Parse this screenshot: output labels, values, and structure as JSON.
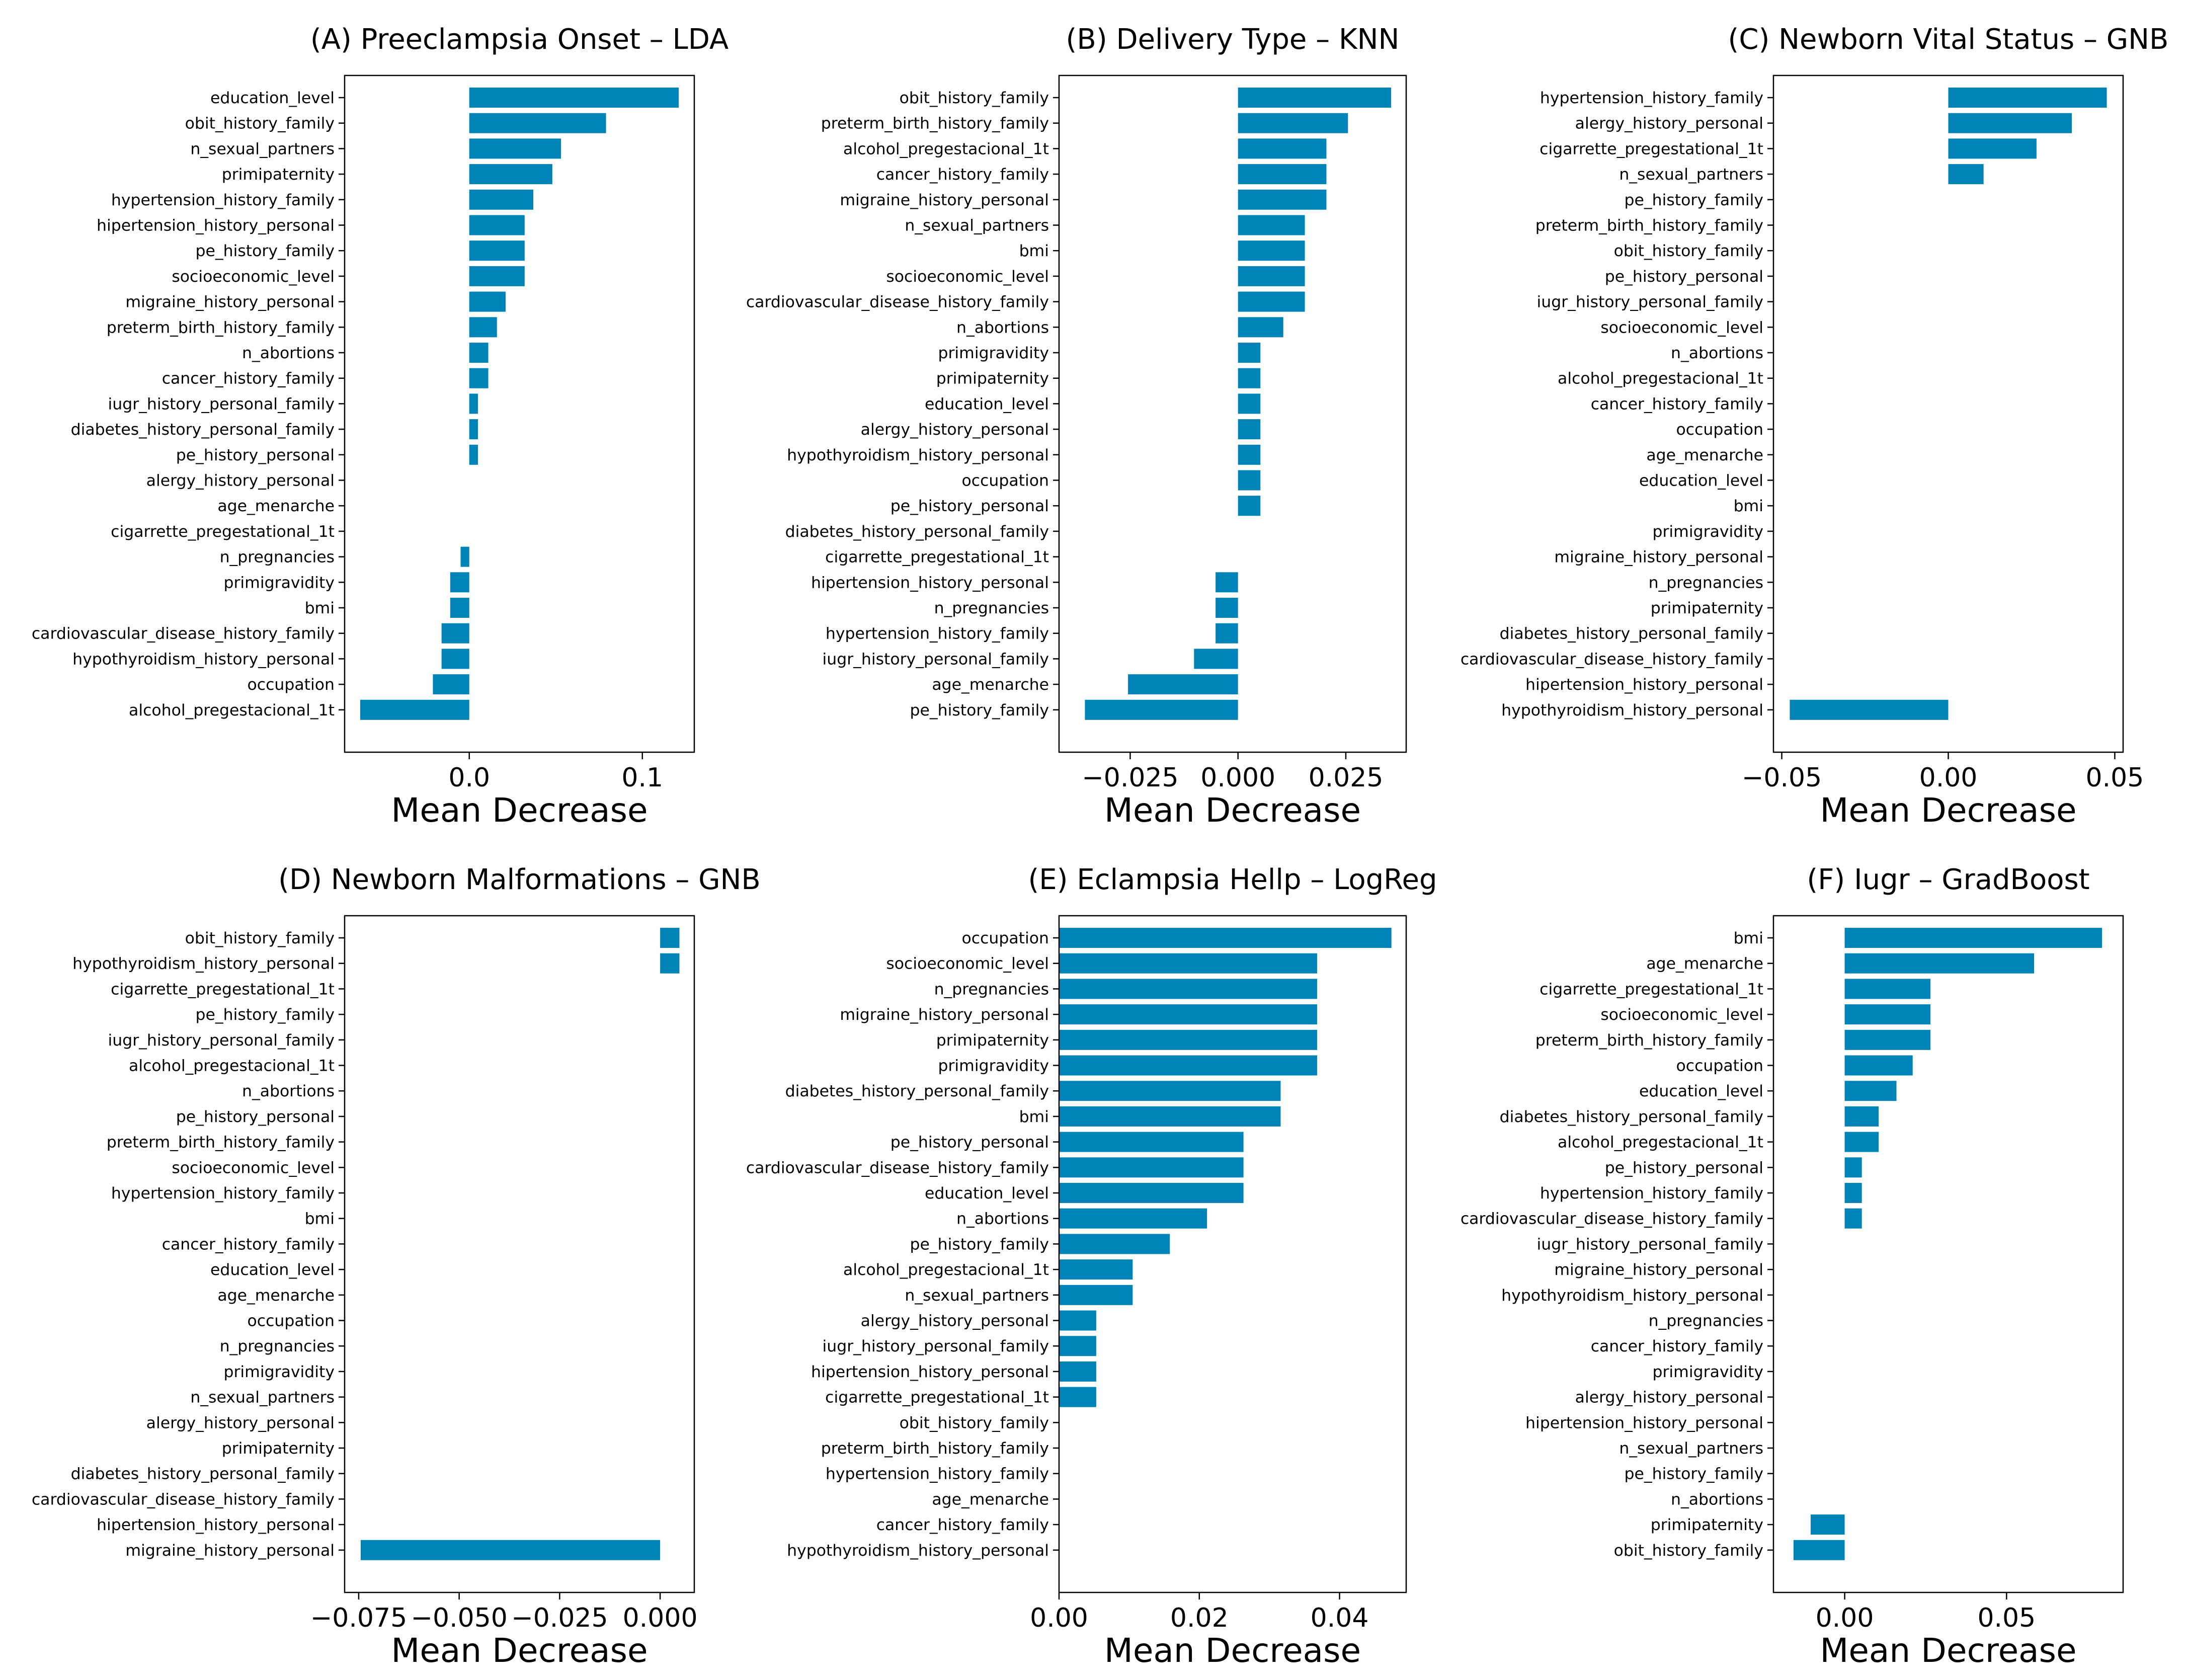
{
  "bar_color": "#0084b8",
  "chart_data": [
    {
      "type": "bar",
      "orientation": "horizontal",
      "title": "(A) Preeclampsia Onset – LDA",
      "xlabel": "Mean Decrease",
      "xlim": [
        -0.072,
        0.13
      ],
      "xticks": [
        0.0,
        0.1
      ],
      "xtick_labels": [
        "0.0",
        "0.1"
      ],
      "categories": [
        "education_level",
        "obit_history_family",
        "n_sexual_partners",
        "primipaternity",
        "hypertension_history_family",
        "hipertension_history_personal",
        "pe_history_family",
        "socioeconomic_level",
        "migraine_history_personal",
        "preterm_birth_history_family",
        "n_abortions",
        "cancer_history_family",
        "iugr_history_personal_family",
        "diabetes_history_personal_family",
        "pe_history_personal",
        "alergy_history_personal",
        "age_menarche",
        "cigarrette_pregestational_1t",
        "n_pregnancies",
        "primigravidity",
        "bmi",
        "cardiovascular_disease_history_family",
        "hypothyroidism_history_personal",
        "occupation",
        "alcohol_pregestacional_1t"
      ],
      "values": [
        0.121,
        0.079,
        0.053,
        0.048,
        0.037,
        0.032,
        0.032,
        0.032,
        0.021,
        0.016,
        0.011,
        0.011,
        0.005,
        0.005,
        0.005,
        0.0,
        0.0,
        0.0,
        -0.005,
        -0.011,
        -0.011,
        -0.016,
        -0.016,
        -0.021,
        -0.063
      ]
    },
    {
      "type": "bar",
      "orientation": "horizontal",
      "title": "(B) Delivery Type – KNN",
      "xlabel": "Mean Decrease",
      "xlim": [
        -0.0415,
        0.039
      ],
      "xticks": [
        -0.025,
        0.0,
        0.025
      ],
      "xtick_labels": [
        "−0.025",
        "0.000",
        "0.025"
      ],
      "categories": [
        "obit_history_family",
        "preterm_birth_history_family",
        "alcohol_pregestacional_1t",
        "cancer_history_family",
        "migraine_history_personal",
        "n_sexual_partners",
        "bmi",
        "socioeconomic_level",
        "cardiovascular_disease_history_family",
        "n_abortions",
        "primigravidity",
        "primipaternity",
        "education_level",
        "alergy_history_personal",
        "hypothyroidism_history_personal",
        "occupation",
        "pe_history_personal",
        "diabetes_history_personal_family",
        "cigarrette_pregestational_1t",
        "hipertension_history_personal",
        "n_pregnancies",
        "hypertension_history_family",
        "iugr_history_personal_family",
        "age_menarche",
        "pe_history_family"
      ],
      "values": [
        0.0355,
        0.0255,
        0.0205,
        0.0205,
        0.0205,
        0.0155,
        0.0155,
        0.0155,
        0.0155,
        0.0105,
        0.0052,
        0.0052,
        0.0052,
        0.0052,
        0.0052,
        0.0052,
        0.0052,
        0.0,
        0.0,
        -0.0052,
        -0.0052,
        -0.0052,
        -0.0102,
        -0.0255,
        -0.0355
      ]
    },
    {
      "type": "bar",
      "orientation": "horizontal",
      "title": "(C) Newborn Vital Status – GNB",
      "xlabel": "Mean Decrease",
      "xlim": [
        -0.0525,
        0.0525
      ],
      "xticks": [
        -0.05,
        0.0,
        0.05
      ],
      "xtick_labels": [
        "−0.05",
        "0.00",
        "0.05"
      ],
      "categories": [
        "hypertension_history_family",
        "alergy_history_personal",
        "cigarrette_pregestational_1t",
        "n_sexual_partners",
        "pe_history_family",
        "preterm_birth_history_family",
        "obit_history_family",
        "pe_history_personal",
        "iugr_history_personal_family",
        "socioeconomic_level",
        "n_abortions",
        "alcohol_pregestacional_1t",
        "cancer_history_family",
        "occupation",
        "age_menarche",
        "education_level",
        "bmi",
        "primigravidity",
        "migraine_history_personal",
        "n_pregnancies",
        "primipaternity",
        "diabetes_history_personal_family",
        "cardiovascular_disease_history_family",
        "hipertension_history_personal",
        "hypothyroidism_history_personal"
      ],
      "values": [
        0.0476,
        0.0371,
        0.0265,
        0.0106,
        0.0,
        0.0,
        0.0,
        0.0,
        0.0,
        0.0,
        0.0,
        0.0,
        0.0,
        0.0,
        0.0,
        0.0,
        0.0,
        0.0,
        0.0,
        0.0,
        0.0,
        0.0,
        0.0,
        0.0,
        -0.0476
      ]
    },
    {
      "type": "bar",
      "orientation": "horizontal",
      "title": "(D) Newborn Malformations – GNB",
      "xlabel": "Mean Decrease",
      "xlim": [
        -0.0785,
        0.0085
      ],
      "xticks": [
        -0.075,
        -0.05,
        -0.025,
        0.0
      ],
      "xtick_labels": [
        "−0.075",
        "−0.050",
        "−0.025",
        "0.000"
      ],
      "categories": [
        "obit_history_family",
        "hypothyroidism_history_personal",
        "cigarrette_pregestational_1t",
        "pe_history_family",
        "iugr_history_personal_family",
        "alcohol_pregestacional_1t",
        "n_abortions",
        "pe_history_personal",
        "preterm_birth_history_family",
        "socioeconomic_level",
        "hypertension_history_family",
        "bmi",
        "cancer_history_family",
        "education_level",
        "age_menarche",
        "occupation",
        "n_pregnancies",
        "primigravidity",
        "n_sexual_partners",
        "alergy_history_personal",
        "primipaternity",
        "diabetes_history_personal_family",
        "cardiovascular_disease_history_family",
        "hipertension_history_personal",
        "migraine_history_personal"
      ],
      "values": [
        0.0048,
        0.0048,
        0.0,
        0.0,
        0.0,
        0.0,
        0.0,
        0.0,
        0.0,
        0.0,
        0.0,
        0.0,
        0.0,
        0.0,
        0.0,
        0.0,
        0.0,
        0.0,
        0.0,
        0.0,
        0.0,
        0.0,
        0.0,
        0.0,
        -0.0745
      ]
    },
    {
      "type": "bar",
      "orientation": "horizontal",
      "title": "(E) Eclampsia Hellp – LogReg",
      "xlabel": "Mean Decrease",
      "xlim": [
        0.0,
        0.0495
      ],
      "xticks": [
        0.0,
        0.02,
        0.04
      ],
      "xtick_labels": [
        "0.00",
        "0.02",
        "0.04"
      ],
      "categories": [
        "occupation",
        "socioeconomic_level",
        "n_pregnancies",
        "migraine_history_personal",
        "primipaternity",
        "primigravidity",
        "diabetes_history_personal_family",
        "bmi",
        "pe_history_personal",
        "cardiovascular_disease_history_family",
        "education_level",
        "n_abortions",
        "pe_history_family",
        "alcohol_pregestacional_1t",
        "n_sexual_partners",
        "alergy_history_personal",
        "iugr_history_personal_family",
        "hipertension_history_personal",
        "cigarrette_pregestational_1t",
        "obit_history_family",
        "preterm_birth_history_family",
        "hypertension_history_family",
        "age_menarche",
        "cancer_history_family",
        "hypothyroidism_history_personal"
      ],
      "values": [
        0.0474,
        0.0368,
        0.0368,
        0.0368,
        0.0368,
        0.0368,
        0.0316,
        0.0316,
        0.0263,
        0.0263,
        0.0263,
        0.0211,
        0.0158,
        0.0105,
        0.0105,
        0.0053,
        0.0053,
        0.0053,
        0.0053,
        0.0,
        0.0,
        0.0,
        0.0,
        0.0,
        0.0
      ]
    },
    {
      "type": "bar",
      "orientation": "horizontal",
      "title": "(F) Iugr – GradBoost",
      "xlabel": "Mean Decrease",
      "xlim": [
        -0.022,
        0.086
      ],
      "xticks": [
        0.0,
        0.05
      ],
      "xtick_labels": [
        "0.00",
        "0.05"
      ],
      "categories": [
        "bmi",
        "age_menarche",
        "cigarrette_pregestational_1t",
        "socioeconomic_level",
        "preterm_birth_history_family",
        "occupation",
        "education_level",
        "diabetes_history_personal_family",
        "alcohol_pregestacional_1t",
        "pe_history_personal",
        "hypertension_history_family",
        "cardiovascular_disease_history_family",
        "iugr_history_personal_family",
        "migraine_history_personal",
        "hypothyroidism_history_personal",
        "n_pregnancies",
        "cancer_history_family",
        "primigravidity",
        "alergy_history_personal",
        "hipertension_history_personal",
        "n_sexual_partners",
        "pe_history_family",
        "n_abortions",
        "primipaternity",
        "obit_history_family"
      ],
      "values": [
        0.0795,
        0.0585,
        0.0265,
        0.0265,
        0.0265,
        0.021,
        0.016,
        0.0105,
        0.0105,
        0.0053,
        0.0053,
        0.0053,
        0.0,
        0.0,
        0.0,
        0.0,
        0.0,
        0.0,
        0.0,
        0.0,
        0.0,
        0.0,
        0.0,
        -0.0105,
        -0.0158
      ]
    }
  ]
}
